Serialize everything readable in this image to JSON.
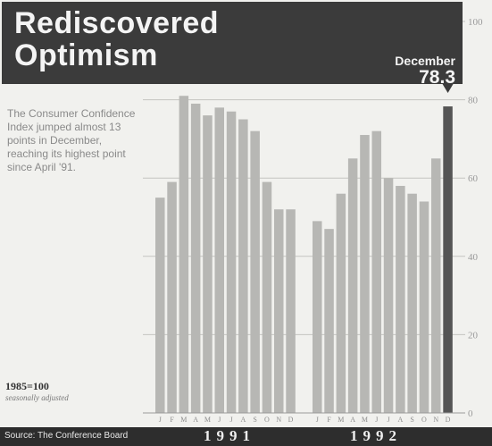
{
  "header": {
    "title_line1": "Rediscovered",
    "title_line2": "Optimism",
    "callout_label": "December",
    "callout_value": "78.3"
  },
  "annotation": "The Consumer Confidence Index jumped almost 13 points in December, reaching its highest point since April '91.",
  "base_note": {
    "line1": "1985=100",
    "line2": "seasonally adjusted"
  },
  "source": "Source: The Conference Board",
  "colors": {
    "header_bg": "#3b3b3b",
    "bar": "#b7b7b4",
    "highlight_bar": "#555555",
    "footer_bg": "#2d2d2d"
  },
  "chart_data": {
    "type": "bar",
    "title": "Rediscovered Optimism",
    "ylim": [
      0,
      100
    ],
    "yticks": [
      0,
      20,
      40,
      60,
      80,
      100
    ],
    "grid": true,
    "groups": [
      {
        "label": "1991",
        "categories": [
          "J",
          "F",
          "M",
          "A",
          "M",
          "J",
          "J",
          "A",
          "S",
          "O",
          "N",
          "D"
        ],
        "values": [
          55,
          59,
          81,
          79,
          76,
          78,
          77,
          75,
          72,
          59,
          52,
          52
        ]
      },
      {
        "label": "1992",
        "categories": [
          "J",
          "F",
          "M",
          "A",
          "M",
          "J",
          "J",
          "A",
          "S",
          "O",
          "N",
          "D"
        ],
        "values": [
          49,
          47,
          56,
          65,
          71,
          72,
          60,
          58,
          56,
          54,
          65,
          78.3
        ]
      }
    ],
    "highlight": {
      "group": "1992",
      "category_index": 11
    }
  }
}
